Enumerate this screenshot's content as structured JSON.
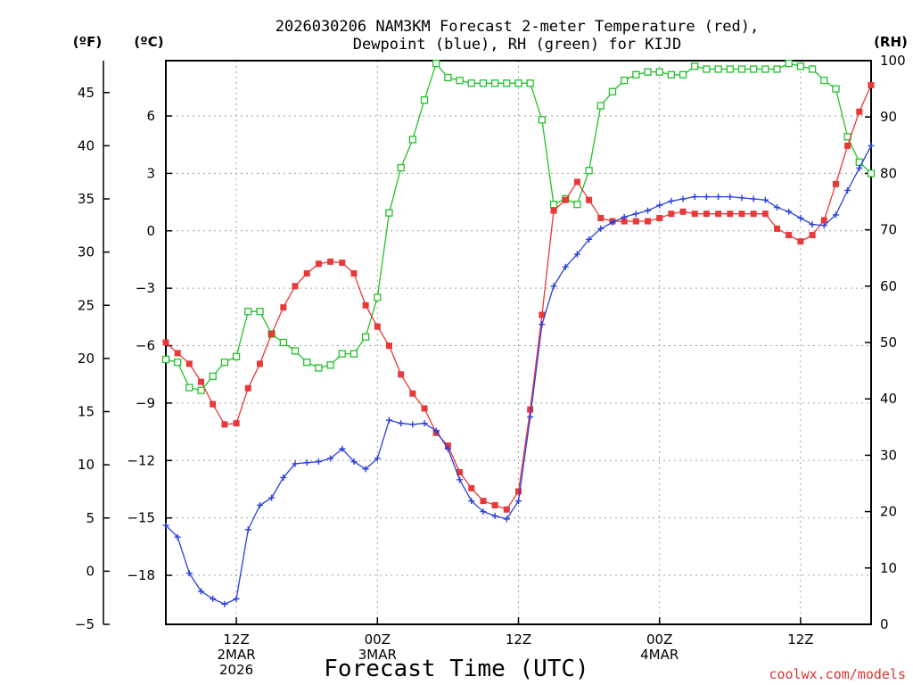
{
  "header": {
    "title_line1": "2026030206 NAM3KM Forecast 2-meter Temperature (red),",
    "title_line2": "Dewpoint (blue), RH (green) for KIJD",
    "unit_f": "(ºF)",
    "unit_c": "(ºC)",
    "unit_rh": "(RH)"
  },
  "footer": {
    "xlabel": "Forecast Time (UTC)",
    "credit": "coolwx.com/models"
  },
  "chart_data": {
    "type": "line",
    "title": "2026030206 NAM3KM Forecast 2-meter Temperature (red), Dewpoint (blue), RH (green) for KIJD",
    "xlabel": "Forecast Time (UTC)",
    "x_hours_start": 6,
    "x_hours_end": 66,
    "x_ticks": [
      {
        "hour": 12,
        "lines": [
          "12Z",
          "2MAR",
          "2026"
        ]
      },
      {
        "hour": 24,
        "lines": [
          "00Z",
          "3MAR"
        ]
      },
      {
        "hour": 36,
        "lines": [
          "12Z"
        ]
      },
      {
        "hour": 48,
        "lines": [
          "00Z",
          "4MAR"
        ]
      },
      {
        "hour": 60,
        "lines": [
          "12Z"
        ]
      }
    ],
    "y_left_f": {
      "label": "(ºF)",
      "range": [
        -5,
        48
      ],
      "ticks": [
        -5,
        0,
        5,
        10,
        15,
        20,
        25,
        30,
        35,
        40,
        45
      ]
    },
    "y_left_c": {
      "label": "(ºC)",
      "range": [
        -20.56,
        8.89
      ],
      "ticks": [
        -18,
        -15,
        -12,
        -9,
        -6,
        -3,
        0,
        3,
        6
      ]
    },
    "y_right_rh": {
      "label": "(RH)",
      "range": [
        0,
        100
      ],
      "ticks": [
        0,
        10,
        20,
        30,
        40,
        50,
        60,
        70,
        80,
        90,
        100
      ]
    },
    "grid": true,
    "series": [
      {
        "name": "Temperature",
        "color": "#e83838",
        "marker": "filled-square",
        "axis": "f",
        "values": [
          [
            6,
            21.5
          ],
          [
            7,
            20.5
          ],
          [
            8,
            19.5
          ],
          [
            9,
            17.8
          ],
          [
            10,
            15.7
          ],
          [
            11,
            13.8
          ],
          [
            12,
            13.9
          ],
          [
            13,
            17.2
          ],
          [
            14,
            19.5
          ],
          [
            15,
            22.3
          ],
          [
            16,
            24.8
          ],
          [
            17,
            26.8
          ],
          [
            18,
            28.0
          ],
          [
            19,
            28.9
          ],
          [
            20,
            29.1
          ],
          [
            21,
            29.0
          ],
          [
            22,
            28.0
          ],
          [
            23,
            25.0
          ],
          [
            24,
            23.0
          ],
          [
            25,
            21.2
          ],
          [
            26,
            18.5
          ],
          [
            27,
            16.7
          ],
          [
            28,
            15.3
          ],
          [
            29,
            13.0
          ],
          [
            30,
            11.8
          ],
          [
            31,
            9.3
          ],
          [
            32,
            7.8
          ],
          [
            33,
            6.6
          ],
          [
            34,
            6.2
          ],
          [
            35,
            5.8
          ],
          [
            36,
            7.5
          ],
          [
            37,
            15.2
          ],
          [
            38,
            24.1
          ],
          [
            39,
            33.9
          ],
          [
            40,
            34.9
          ],
          [
            41,
            36.6
          ],
          [
            42,
            34.9
          ],
          [
            43,
            33.2
          ],
          [
            44,
            32.9
          ],
          [
            45,
            32.9
          ],
          [
            46,
            32.9
          ],
          [
            47,
            32.9
          ],
          [
            48,
            33.2
          ],
          [
            49,
            33.6
          ],
          [
            50,
            33.8
          ],
          [
            51,
            33.6
          ],
          [
            52,
            33.6
          ],
          [
            53,
            33.6
          ],
          [
            54,
            33.6
          ],
          [
            55,
            33.6
          ],
          [
            56,
            33.6
          ],
          [
            57,
            33.6
          ],
          [
            58,
            32.2
          ],
          [
            59,
            31.6
          ],
          [
            60,
            31.0
          ],
          [
            61,
            31.6
          ],
          [
            62,
            33.0
          ],
          [
            63,
            36.4
          ],
          [
            64,
            40.0
          ],
          [
            65,
            43.2
          ],
          [
            66,
            45.7
          ]
        ]
      },
      {
        "name": "Dewpoint",
        "color": "#2a3fdc",
        "marker": "plus",
        "axis": "f",
        "values": [
          [
            6,
            4.3
          ],
          [
            7,
            3.2
          ],
          [
            8,
            -0.2
          ],
          [
            9,
            -1.9
          ],
          [
            10,
            -2.6
          ],
          [
            11,
            -3.1
          ],
          [
            12,
            -2.6
          ],
          [
            13,
            3.9
          ],
          [
            14,
            6.2
          ],
          [
            15,
            6.9
          ],
          [
            16,
            8.8
          ],
          [
            17,
            10.1
          ],
          [
            18,
            10.2
          ],
          [
            19,
            10.3
          ],
          [
            20,
            10.6
          ],
          [
            21,
            11.5
          ],
          [
            22,
            10.3
          ],
          [
            23,
            9.6
          ],
          [
            24,
            10.6
          ],
          [
            25,
            14.2
          ],
          [
            26,
            13.9
          ],
          [
            27,
            13.8
          ],
          [
            28,
            13.9
          ],
          [
            29,
            13.2
          ],
          [
            30,
            11.5
          ],
          [
            31,
            8.6
          ],
          [
            32,
            6.6
          ],
          [
            33,
            5.6
          ],
          [
            34,
            5.2
          ],
          [
            35,
            4.9
          ],
          [
            36,
            6.6
          ],
          [
            37,
            14.5
          ],
          [
            38,
            23.2
          ],
          [
            39,
            26.8
          ],
          [
            40,
            28.6
          ],
          [
            41,
            29.8
          ],
          [
            42,
            31.2
          ],
          [
            43,
            32.2
          ],
          [
            44,
            32.8
          ],
          [
            45,
            33.3
          ],
          [
            46,
            33.6
          ],
          [
            47,
            33.9
          ],
          [
            48,
            34.4
          ],
          [
            49,
            34.8
          ],
          [
            50,
            35.0
          ],
          [
            51,
            35.2
          ],
          [
            52,
            35.2
          ],
          [
            53,
            35.2
          ],
          [
            54,
            35.2
          ],
          [
            55,
            35.1
          ],
          [
            56,
            35.0
          ],
          [
            57,
            34.9
          ],
          [
            58,
            34.2
          ],
          [
            59,
            33.8
          ],
          [
            60,
            33.2
          ],
          [
            61,
            32.6
          ],
          [
            62,
            32.5
          ],
          [
            63,
            33.5
          ],
          [
            64,
            35.8
          ],
          [
            65,
            37.9
          ],
          [
            66,
            40.0
          ]
        ]
      },
      {
        "name": "RH",
        "color": "#22c02a",
        "marker": "open-square",
        "axis": "rh",
        "values": [
          [
            6,
            47
          ],
          [
            7,
            46.5
          ],
          [
            8,
            42
          ],
          [
            9,
            41.5
          ],
          [
            10,
            44
          ],
          [
            11,
            46.5
          ],
          [
            12,
            47.5
          ],
          [
            13,
            55.5
          ],
          [
            14,
            55.5
          ],
          [
            15,
            51.5
          ],
          [
            16,
            50
          ],
          [
            17,
            48.5
          ],
          [
            18,
            46.5
          ],
          [
            19,
            45.5
          ],
          [
            20,
            46
          ],
          [
            21,
            48
          ],
          [
            22,
            48
          ],
          [
            23,
            51
          ],
          [
            24,
            58
          ],
          [
            25,
            73
          ],
          [
            26,
            81
          ],
          [
            27,
            86
          ],
          [
            28,
            93
          ],
          [
            29,
            99.5
          ],
          [
            30,
            97
          ],
          [
            31,
            96.5
          ],
          [
            32,
            96
          ],
          [
            33,
            96
          ],
          [
            34,
            96
          ],
          [
            35,
            96
          ],
          [
            36,
            96
          ],
          [
            37,
            96
          ],
          [
            38,
            89.5
          ],
          [
            39,
            74.5
          ],
          [
            40,
            75.5
          ],
          [
            41,
            74.5
          ],
          [
            42,
            80.5
          ],
          [
            43,
            92
          ],
          [
            44,
            94.5
          ],
          [
            45,
            96.5
          ],
          [
            46,
            97.5
          ],
          [
            47,
            98
          ],
          [
            48,
            98
          ],
          [
            49,
            97.5
          ],
          [
            50,
            97.5
          ],
          [
            51,
            99
          ],
          [
            52,
            98.5
          ],
          [
            53,
            98.5
          ],
          [
            54,
            98.5
          ],
          [
            55,
            98.5
          ],
          [
            56,
            98.5
          ],
          [
            57,
            98.5
          ],
          [
            58,
            98.5
          ],
          [
            59,
            99.5
          ],
          [
            60,
            99
          ],
          [
            61,
            98.5
          ],
          [
            62,
            96.5
          ],
          [
            63,
            95
          ],
          [
            64,
            86.5
          ],
          [
            65,
            82
          ],
          [
            66,
            80
          ]
        ]
      }
    ]
  }
}
